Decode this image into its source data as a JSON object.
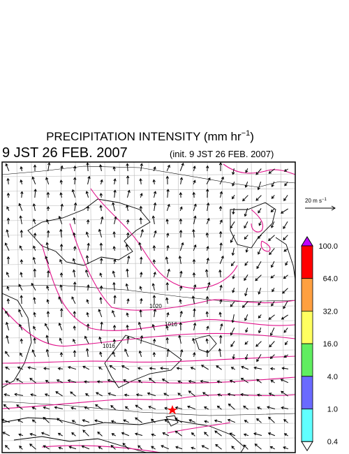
{
  "header": {
    "title": "PRECIPITATION INTENSITY (mm hr",
    "title_exponent": "−1",
    "title_close": ")",
    "valid_time": "9 JST 26 FEB. 2007",
    "init_time": "(init. 9 JST 26 FEB. 2007)"
  },
  "wind_scale": {
    "label": "20 m s",
    "label_exponent": "−1"
  },
  "isobar_labels": [
    "1020",
    "1016",
    "1016"
  ],
  "colorbar": {
    "labels": [
      "100.0",
      "64.0",
      "32.0",
      "16.0",
      "4.0",
      "1.0",
      "0.4"
    ],
    "colors": [
      "#ff0000",
      "#ffa040",
      "#ffff60",
      "#60ee60",
      "#6a6aff",
      "#60ffff"
    ],
    "over_color": "#c000ff",
    "under_color": "#ffffff"
  }
}
